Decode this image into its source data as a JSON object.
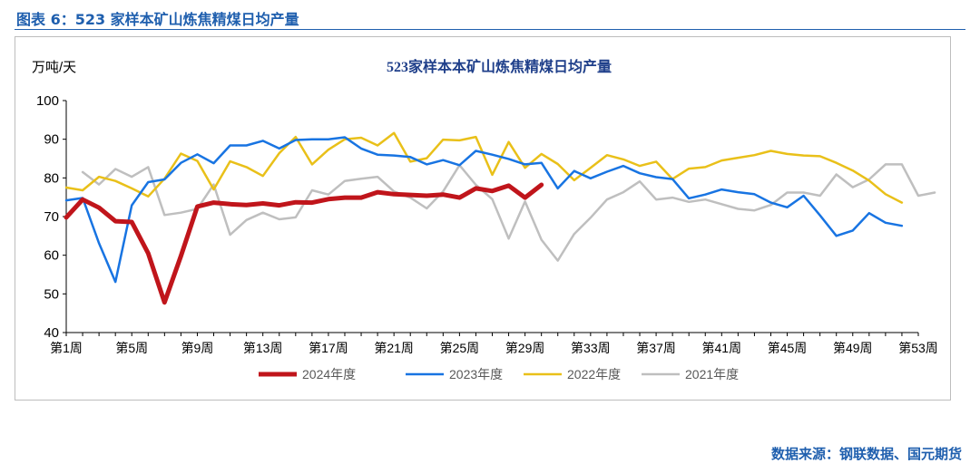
{
  "header": {
    "figure_title": "图表 6：523 家样本矿山炼焦精煤日均产量"
  },
  "footer": {
    "source": "数据来源：钢联数据、国元期货"
  },
  "colors": {
    "accent": "#1f5fae",
    "s2024": "#c0151b",
    "s2023": "#1874e2",
    "s2022": "#e9c019",
    "s2021": "#bfbfbf"
  },
  "chart_data": {
    "type": "line",
    "title": "523家样本本矿山炼焦精煤日均产量",
    "ylabel": "万吨/天",
    "xlabel": "",
    "ylim": [
      40,
      100
    ],
    "yticks": [
      40,
      50,
      60,
      70,
      80,
      90,
      100
    ],
    "xticks": [
      1,
      5,
      9,
      13,
      17,
      21,
      25,
      29,
      33,
      37,
      41,
      45,
      49,
      53
    ],
    "xtick_labels": [
      "第1周",
      "第5周",
      "第9周",
      "第13周",
      "第17周",
      "第21周",
      "第25周",
      "第29周",
      "第33周",
      "第37周",
      "第41周",
      "第45周",
      "第49周",
      "第53周"
    ],
    "x_range": [
      1,
      53
    ],
    "grid": false,
    "legend_position": "bottom",
    "series": [
      {
        "name": "2024年度",
        "color": "#c0151b",
        "width": 5,
        "values": [
          69.8,
          74.4,
          72.3,
          68.8,
          68.6,
          60.5,
          47.8,
          59.8,
          72.6,
          73.6,
          73.2,
          73.0,
          73.4,
          72.9,
          73.7,
          73.6,
          74.5,
          74.9,
          74.9,
          76.3,
          75.8,
          75.6,
          75.4,
          75.7,
          74.9,
          77.3,
          76.6,
          78.0,
          74.9,
          78.2
        ]
      },
      {
        "name": "2023年度",
        "color": "#1874e2",
        "width": 2.5,
        "values": [
          74.2,
          74.8,
          63.1,
          53.1,
          72.9,
          78.9,
          79.6,
          83.9,
          86.1,
          83.8,
          88.4,
          88.4,
          89.6,
          87.6,
          89.8,
          90.0,
          90.0,
          90.5,
          87.6,
          86.0,
          85.8,
          85.4,
          83.5,
          84.6,
          83.3,
          87.0,
          86.0,
          84.9,
          83.5,
          83.9,
          77.3,
          81.8,
          79.9,
          81.6,
          83.1,
          81.2,
          80.2,
          79.7,
          74.7,
          75.7,
          77.0,
          76.3,
          75.8,
          73.6,
          72.4,
          75.4,
          70.3,
          65.0,
          66.4,
          70.9,
          68.4,
          67.6
        ]
      },
      {
        "name": "2022年度",
        "color": "#e9c019",
        "width": 2.5,
        "values": [
          77.5,
          76.8,
          80.3,
          79.2,
          77.3,
          75.2,
          79.8,
          86.3,
          84.4,
          77.0,
          84.3,
          82.8,
          80.5,
          86.4,
          90.6,
          83.5,
          87.3,
          90.0,
          90.4,
          88.4,
          91.6,
          84.2,
          85.1,
          89.9,
          89.7,
          90.6,
          80.8,
          89.3,
          82.6,
          86.2,
          83.6,
          79.4,
          82.6,
          85.9,
          84.8,
          83.1,
          84.2,
          79.7,
          82.4,
          82.8,
          84.5,
          85.2,
          85.9,
          87.0,
          86.2,
          85.8,
          85.6,
          83.9,
          81.9,
          79.3,
          75.8,
          73.6
        ]
      },
      {
        "name": "2021年度",
        "color": "#bfbfbf",
        "width": 2.5,
        "values": [
          null,
          81.5,
          78.3,
          82.3,
          80.3,
          82.8,
          70.4,
          71.0,
          72.0,
          78.3,
          65.3,
          69.1,
          71.0,
          69.3,
          69.8,
          76.8,
          75.7,
          79.2,
          79.8,
          80.3,
          76.5,
          74.9,
          72.1,
          76.5,
          83.3,
          78.2,
          74.5,
          64.3,
          73.9,
          64.0,
          58.6,
          65.5,
          69.7,
          74.4,
          76.3,
          79.1,
          74.4,
          74.9,
          73.8,
          74.4,
          73.2,
          72.0,
          71.6,
          73.0,
          76.2,
          76.2,
          75.4,
          80.9,
          77.6,
          79.6,
          83.5,
          83.5,
          75.4,
          76.2
        ]
      }
    ]
  }
}
